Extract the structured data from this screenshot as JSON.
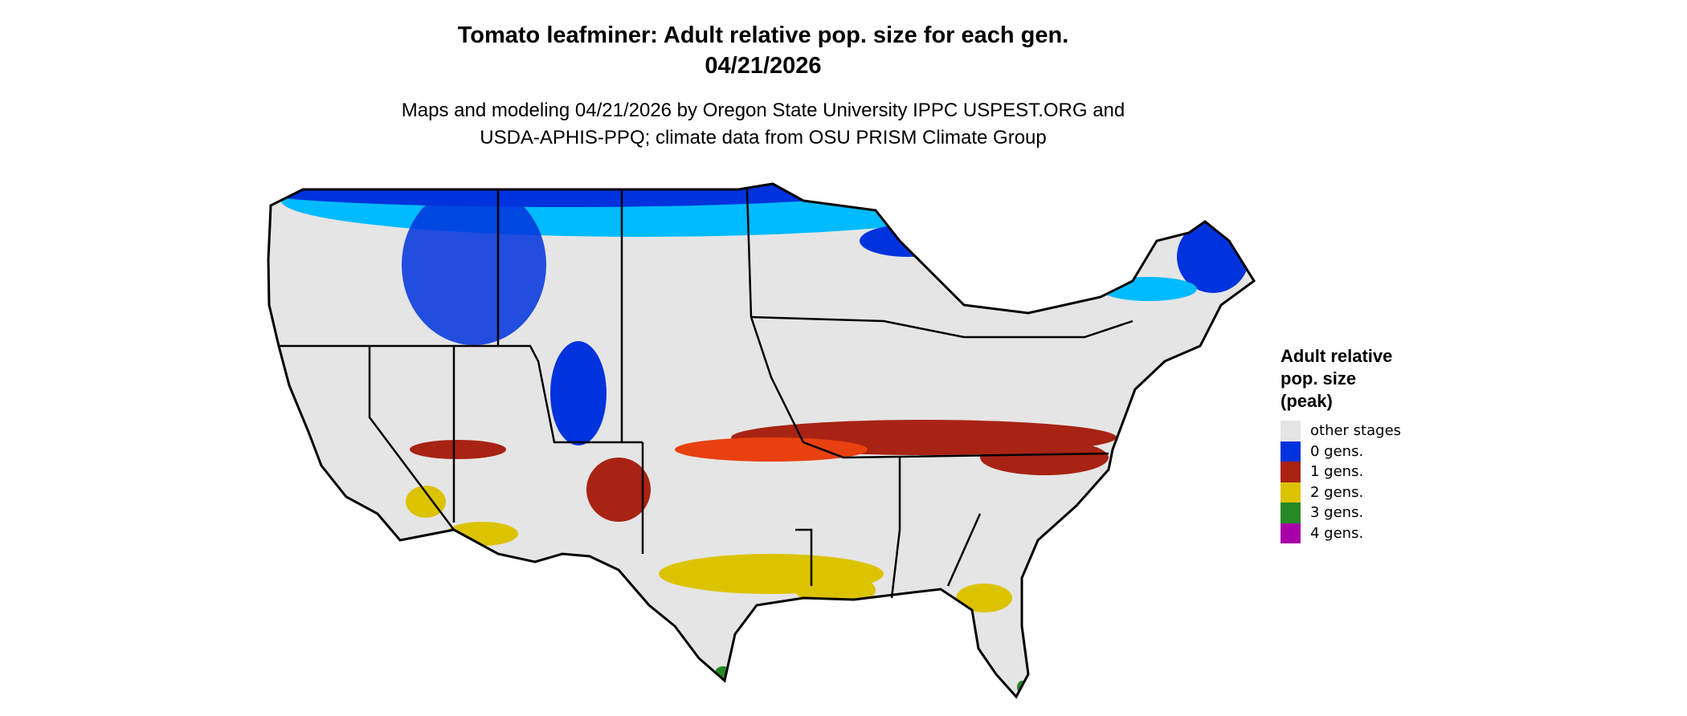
{
  "title_line1": "Tomato leafminer: Adult relative pop. size for each gen.",
  "title_line2": "04/21/2026",
  "subtitle_line1": "Maps and modeling 04/21/2026 by Oregon State University IPPC USPEST.ORG and",
  "subtitle_line2": "USDA-APHIS-PPQ; climate data from OSU PRISM Climate Group",
  "legend": {
    "title_line1": "Adult relative",
    "title_line2": "pop. size",
    "title_line3": "(peak)",
    "items": [
      {
        "label": "other stages",
        "color": "#e5e5e5"
      },
      {
        "label": "0 gens.",
        "color": "#0033dd"
      },
      {
        "label": "1 gens.",
        "color": "#a82314"
      },
      {
        "label": "2 gens.",
        "color": "#dcc300"
      },
      {
        "label": "3 gens.",
        "color": "#258a25"
      },
      {
        "label": "4 gens.",
        "color": "#a800a8"
      }
    ]
  },
  "colors": {
    "background_land": "#e5e5e5",
    "light_blue": "#00bbff",
    "orange_red": "#e8400e",
    "border": "#000000"
  }
}
